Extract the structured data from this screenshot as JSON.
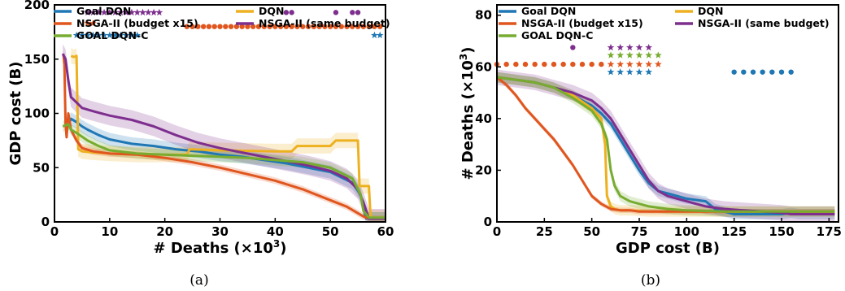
{
  "colors": {
    "goal_dqn": "#1f77b4",
    "nsga_x15": "#e0561f",
    "goal_dqn_c": "#77ac30",
    "dqn": "#edb120",
    "nsga_same": "#7e2f8e"
  },
  "chart_data": [
    {
      "type": "line",
      "caption": "(a)",
      "xlabel": "# Deaths (×10",
      "xlabel_sup": "3",
      "xlabel_tail": ")",
      "ylabel": "GDP cost (B)",
      "xlim": [
        0,
        60
      ],
      "ylim": [
        0,
        200
      ],
      "xticks": [
        0,
        10,
        20,
        30,
        40,
        50,
        60
      ],
      "yticks": [
        0,
        50,
        100,
        150,
        200
      ],
      "legend": [
        "Goal DQN",
        "DQN",
        "NSGA-II (budget x15)",
        "NSGA-II (same budget)",
        "GOAL DQN-C"
      ],
      "legend_placement": "top",
      "series": [
        {
          "name": "Goal DQN",
          "color_key": "goal_dqn",
          "x": [
            2.5,
            3,
            4,
            5,
            6,
            8,
            10,
            14,
            18,
            22,
            26,
            30,
            34,
            38,
            42,
            46,
            50,
            54,
            55.5,
            56,
            56.5,
            60
          ],
          "y": [
            90,
            95,
            92,
            88,
            85,
            80,
            76,
            72,
            70,
            67,
            65,
            62,
            60,
            57,
            54,
            50,
            46,
            36,
            25,
            12,
            3,
            3
          ],
          "band": 6
        },
        {
          "name": "DQN",
          "color_key": "dqn",
          "x": [
            3,
            3.5,
            4,
            4.3,
            5,
            7,
            10,
            15,
            20,
            24,
            24.5,
            30,
            40,
            43,
            44,
            50,
            51,
            55,
            55.3,
            57,
            57.3,
            60
          ],
          "y": [
            153,
            152,
            153,
            67,
            65,
            64,
            63,
            62,
            62,
            62,
            67,
            66,
            65,
            65,
            70,
            70,
            75,
            75,
            33,
            33,
            4,
            4
          ],
          "band": 7
        },
        {
          "name": "NSGA-II (budget x15)",
          "color_key": "nsga_x15",
          "x": [
            1.6,
            1.8,
            2,
            2.2,
            2.5,
            3,
            4,
            5,
            7,
            10,
            15,
            20,
            25,
            30,
            35,
            40,
            45,
            50,
            53,
            55,
            56,
            57,
            60
          ],
          "y": [
            155,
            145,
            90,
            78,
            100,
            85,
            75,
            68,
            65,
            63,
            62,
            59,
            55,
            50,
            44,
            38,
            30,
            20,
            14,
            8,
            5,
            3,
            3
          ],
          "band": 3
        },
        {
          "name": "NSGA-II (same budget)",
          "color_key": "nsga_same",
          "x": [
            1.5,
            2,
            2.5,
            3,
            4,
            5,
            7,
            10,
            14,
            18,
            22,
            26,
            30,
            34,
            38,
            42,
            46,
            50,
            53,
            55,
            56,
            57,
            60
          ],
          "y": [
            155,
            150,
            130,
            115,
            110,
            105,
            102,
            98,
            94,
            88,
            80,
            73,
            68,
            64,
            60,
            56,
            52,
            47,
            40,
            30,
            18,
            3,
            3
          ],
          "band": 9
        },
        {
          "name": "GOAL DQN-C",
          "color_key": "goal_dqn_c",
          "x": [
            1.5,
            2.5,
            3,
            4,
            6,
            8,
            10,
            15,
            20,
            25,
            30,
            35,
            40,
            45,
            50,
            54,
            55.5,
            56,
            57,
            60
          ],
          "y": [
            88,
            90,
            85,
            82,
            75,
            70,
            66,
            63,
            62,
            61,
            60,
            59,
            57,
            55,
            50,
            40,
            25,
            10,
            4,
            4
          ],
          "band": 5
        }
      ],
      "markers": [
        {
          "color_key": "nsga_same",
          "shape": "star",
          "y": 193,
          "x": [
            6,
            7,
            8,
            9,
            10,
            11,
            12,
            13,
            14,
            15,
            16,
            17,
            18,
            19
          ]
        },
        {
          "color_key": "nsga_same",
          "shape": "dot",
          "y": 193,
          "x": [
            42,
            43,
            51,
            54,
            55
          ]
        },
        {
          "color_key": "nsga_x15",
          "shape": "star",
          "y": 183,
          "x": [
            6,
            7
          ]
        },
        {
          "color_key": "nsga_x15",
          "shape": "dot",
          "y": 180,
          "x": [
            24,
            25,
            26,
            27,
            28,
            29,
            30,
            31,
            32,
            33,
            34,
            35,
            36,
            37,
            38,
            39,
            40,
            41,
            42,
            43,
            44,
            45,
            46,
            47,
            48,
            49,
            50,
            51,
            52,
            53,
            54,
            55,
            56,
            57,
            58,
            59
          ]
        },
        {
          "color_key": "goal_dqn",
          "shape": "star",
          "y": 172,
          "x": [
            4,
            5,
            6,
            7,
            8,
            9,
            10,
            11,
            12,
            13,
            14,
            15
          ]
        },
        {
          "color_key": "goal_dqn",
          "shape": "star",
          "y": 172,
          "x": [
            58,
            59
          ]
        }
      ]
    },
    {
      "type": "line",
      "caption": "(b)",
      "xlabel": "GDP cost (B)",
      "ylabel": "# Deaths (×10",
      "ylabel_sup": "3",
      "ylabel_tail": ")",
      "xlim": [
        0,
        180
      ],
      "ylim": [
        0,
        84
      ],
      "xticks": [
        0,
        25,
        50,
        75,
        100,
        125,
        150,
        175
      ],
      "yticks": [
        0,
        20,
        40,
        60,
        80
      ],
      "legend": [
        "Goal DQN",
        "DQN",
        "NSGA-II (budget x15)",
        "NSGA-II (same budget)",
        "GOAL DQN-C"
      ],
      "legend_placement": "top",
      "series": [
        {
          "name": "Goal DQN",
          "color_key": "goal_dqn",
          "x": [
            0,
            10,
            20,
            30,
            40,
            50,
            55,
            60,
            65,
            70,
            75,
            80,
            85,
            90,
            95,
            100,
            110,
            115,
            120,
            125,
            150,
            155,
            160,
            178
          ],
          "y": [
            56,
            55,
            54,
            52,
            49,
            45,
            42,
            38,
            32,
            26,
            20,
            15,
            12,
            11,
            10,
            9,
            8,
            5,
            4,
            3,
            3,
            3.5,
            3,
            3
          ],
          "band": 2
        },
        {
          "name": "DQN",
          "color_key": "dqn",
          "x": [
            0,
            10,
            20,
            30,
            40,
            50,
            55,
            57,
            58,
            60,
            62,
            65,
            70,
            80,
            100,
            120,
            150,
            178
          ],
          "y": [
            56,
            55,
            54,
            52,
            49,
            44,
            40,
            30,
            10,
            6,
            5,
            4.5,
            4.5,
            4,
            4,
            4,
            4,
            4
          ],
          "band": 2
        },
        {
          "name": "NSGA-II (budget x15)",
          "color_key": "nsga_x15",
          "x": [
            0,
            5,
            10,
            15,
            20,
            25,
            30,
            35,
            40,
            45,
            50,
            55,
            60,
            65,
            70,
            75,
            80,
            90,
            100,
            120,
            150,
            178
          ],
          "y": [
            56,
            53,
            49,
            44,
            40,
            36,
            32,
            27,
            22,
            16,
            10,
            7,
            5,
            4.5,
            4.5,
            4,
            4,
            4,
            4,
            4,
            4,
            4
          ],
          "band": 1
        },
        {
          "name": "NSGA-II (same budget)",
          "color_key": "nsga_same",
          "x": [
            0,
            10,
            20,
            30,
            40,
            50,
            55,
            60,
            65,
            70,
            75,
            80,
            85,
            90,
            95,
            100,
            105,
            110,
            115,
            120,
            130,
            140,
            150,
            155,
            178
          ],
          "y": [
            56,
            55,
            54,
            52,
            50,
            47,
            44,
            40,
            34,
            28,
            22,
            16,
            12,
            10,
            9,
            8,
            7,
            6,
            5.5,
            5,
            4.5,
            4,
            3.5,
            3,
            3
          ],
          "band": 3
        },
        {
          "name": "GOAL DQN-C",
          "color_key": "goal_dqn_c",
          "x": [
            0,
            10,
            20,
            30,
            40,
            50,
            55,
            58,
            60,
            62,
            65,
            70,
            80,
            90,
            100,
            120,
            150,
            178
          ],
          "y": [
            56,
            55,
            54,
            52,
            48,
            43,
            38,
            32,
            20,
            14,
            10,
            8,
            6,
            5,
            4.5,
            4,
            4,
            4
          ],
          "band": 2
        }
      ],
      "markers": [
        {
          "color_key": "nsga_same",
          "shape": "dot",
          "y": 67.5,
          "x": [
            40
          ]
        },
        {
          "color_key": "nsga_same",
          "shape": "star",
          "y": 67.5,
          "x": [
            60,
            65,
            70,
            75,
            80
          ]
        },
        {
          "color_key": "goal_dqn_c",
          "shape": "star",
          "y": 64.5,
          "x": [
            60,
            65,
            70,
            75,
            80,
            85
          ]
        },
        {
          "color_key": "nsga_x15",
          "shape": "dot",
          "y": 61,
          "x": [
            0,
            5,
            10,
            15,
            20,
            25,
            30,
            35,
            40,
            45,
            50,
            55
          ]
        },
        {
          "color_key": "nsga_x15",
          "shape": "star",
          "y": 61,
          "x": [
            60,
            65,
            70,
            75,
            80,
            85
          ]
        },
        {
          "color_key": "goal_dqn",
          "shape": "star",
          "y": 58,
          "x": [
            60,
            65,
            70,
            75,
            80
          ]
        },
        {
          "color_key": "goal_dqn",
          "shape": "dot",
          "y": 58,
          "x": [
            125,
            130,
            135,
            140,
            145,
            150,
            155
          ]
        }
      ]
    }
  ]
}
